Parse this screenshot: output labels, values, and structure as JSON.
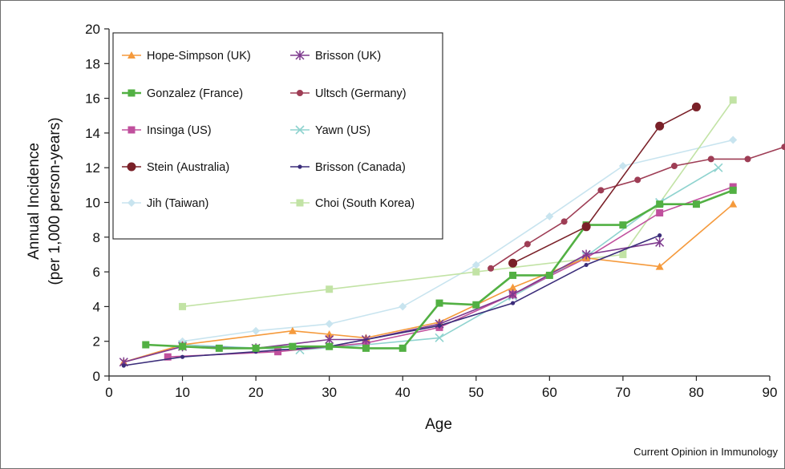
{
  "chart_data": {
    "type": "line",
    "xlabel": "Age",
    "ylabel": [
      "Annual Incidence",
      "(per 1,000 person-years)"
    ],
    "xlim": [
      0,
      90
    ],
    "ylim": [
      0,
      20
    ],
    "xticks": [
      "0",
      "10",
      "20",
      "30",
      "40",
      "50",
      "60",
      "70",
      "80",
      "90"
    ],
    "yticks": [
      "0",
      "2",
      "4",
      "6",
      "8",
      "10",
      "12",
      "14",
      "16",
      "18",
      "20"
    ],
    "grid": false,
    "legend_position": "top-left",
    "credit": "Current Opinion in Immunology",
    "series": [
      {
        "name": "Hope-Simpson (UK)",
        "color": "#f59a3c",
        "marker": "triangle",
        "x": [
          2,
          10,
          25,
          30,
          35,
          45,
          55,
          65,
          75,
          85
        ],
        "y": [
          0.8,
          1.8,
          2.6,
          2.4,
          2.2,
          3.1,
          5.1,
          6.8,
          6.3,
          9.9
        ]
      },
      {
        "name": "Brisson (UK)",
        "color": "#7e3a8e",
        "marker": "asterisk",
        "x": [
          2,
          10,
          20,
          30,
          35,
          45,
          55,
          65,
          75
        ],
        "y": [
          0.8,
          1.7,
          1.6,
          2.1,
          2.1,
          3.0,
          4.7,
          7.0,
          7.7
        ]
      },
      {
        "name": "Gonzalez (France)",
        "color": "#52b043",
        "marker": "square",
        "x": [
          5,
          10,
          15,
          20,
          25,
          30,
          35,
          40,
          45,
          50,
          55,
          60,
          65,
          70,
          75,
          80,
          85
        ],
        "y": [
          1.8,
          1.7,
          1.6,
          1.6,
          1.7,
          1.7,
          1.6,
          1.6,
          4.2,
          4.1,
          5.8,
          5.8,
          8.7,
          8.7,
          9.9,
          9.9,
          10.7
        ]
      },
      {
        "name": "Ultsch (Germany)",
        "color": "#9e3d55",
        "marker": "circle",
        "x": [
          52,
          57,
          62,
          67,
          72,
          77,
          82,
          87,
          92
        ],
        "y": [
          6.2,
          7.6,
          8.9,
          10.7,
          11.3,
          12.1,
          12.5,
          12.5,
          13.2
        ]
      },
      {
        "name": "Insinga (US)",
        "color": "#c0509d",
        "marker": "square",
        "x": [
          8,
          23,
          35,
          45,
          55,
          65,
          75,
          85
        ],
        "y": [
          1.1,
          1.4,
          1.9,
          2.8,
          4.7,
          6.8,
          9.4,
          10.9
        ]
      },
      {
        "name": "Yawn (US)",
        "color": "#8fd3cf",
        "marker": "x",
        "x": [
          10,
          26,
          35,
          45,
          55,
          65,
          75,
          83
        ],
        "y": [
          1.8,
          1.5,
          1.8,
          2.2,
          4.6,
          6.9,
          10.0,
          12.0
        ]
      },
      {
        "name": "Stein (Australia)",
        "color": "#7a2028",
        "marker": "circle-large",
        "x": [
          55,
          65,
          75,
          80
        ],
        "y": [
          6.5,
          8.6,
          14.4,
          15.5
        ]
      },
      {
        "name": "Brisson (Canada)",
        "color": "#3b2d7a",
        "marker": "dot",
        "x": [
          2,
          10,
          20,
          30,
          45,
          55,
          65,
          75
        ],
        "y": [
          0.6,
          1.1,
          1.4,
          1.7,
          2.9,
          4.2,
          6.4,
          8.1
        ]
      },
      {
        "name": "Jih (Taiwan)",
        "color": "#c8e4ef",
        "marker": "diamond",
        "x": [
          10,
          20,
          30,
          40,
          50,
          60,
          70,
          85
        ],
        "y": [
          2.0,
          2.6,
          3.0,
          4.0,
          6.4,
          9.2,
          12.1,
          13.6
        ]
      },
      {
        "name": "Choi (South Korea)",
        "color": "#c2e3a5",
        "marker": "square",
        "x": [
          10,
          30,
          50,
          70,
          85
        ],
        "y": [
          4.0,
          5.0,
          6.0,
          7.0,
          15.9
        ]
      }
    ]
  }
}
